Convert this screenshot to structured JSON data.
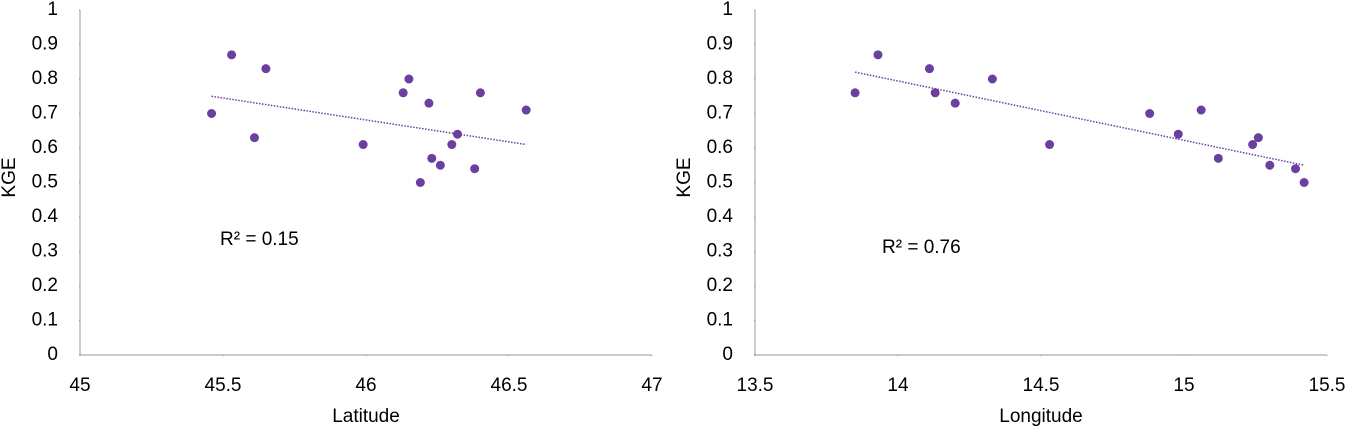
{
  "chart_data": [
    {
      "type": "scatter",
      "x_label": "Latitude",
      "y_label": "KGE",
      "annotation": "R² = 0.15",
      "color": "#6a3fa0",
      "x": [
        45.46,
        45.53,
        45.61,
        45.65,
        45.99,
        46.13,
        46.15,
        46.19,
        46.22,
        46.23,
        46.26,
        46.3,
        46.32,
        46.38,
        46.4,
        46.56
      ],
      "values": [
        0.7,
        0.87,
        0.63,
        0.83,
        0.61,
        0.76,
        0.8,
        0.5,
        0.73,
        0.57,
        0.55,
        0.61,
        0.64,
        0.54,
        0.76,
        0.71
      ],
      "trendline": {
        "x": [
          45.46,
          46.56
        ],
        "values": [
          0.75,
          0.61
        ]
      },
      "xlim": [
        45,
        47
      ],
      "xticks": [
        45,
        45.5,
        46,
        46.5,
        47
      ],
      "ylim": [
        0,
        1
      ],
      "yticks": [
        0,
        0.1,
        0.2,
        0.3,
        0.4,
        0.5,
        0.6,
        0.7,
        0.8,
        0.9,
        1
      ]
    },
    {
      "type": "scatter",
      "x_label": "Longitude",
      "y_label": "KGE",
      "annotation": "R² = 0.76",
      "color": "#6a3fa0",
      "x": [
        13.85,
        13.93,
        14.11,
        14.13,
        14.2,
        14.33,
        14.53,
        14.88,
        14.98,
        15.06,
        15.12,
        15.24,
        15.26,
        15.3,
        15.39,
        15.42
      ],
      "values": [
        0.76,
        0.87,
        0.83,
        0.76,
        0.73,
        0.8,
        0.61,
        0.7,
        0.64,
        0.71,
        0.57,
        0.61,
        0.63,
        0.55,
        0.54,
        0.5
      ],
      "trendline": {
        "x": [
          13.85,
          15.42
        ],
        "values": [
          0.82,
          0.55
        ]
      },
      "xlim": [
        13.5,
        15.5
      ],
      "xticks": [
        13.5,
        14,
        14.5,
        15,
        15.5
      ],
      "ylim": [
        0,
        1
      ],
      "yticks": [
        0,
        0.1,
        0.2,
        0.3,
        0.4,
        0.5,
        0.6,
        0.7,
        0.8,
        0.9,
        1
      ]
    }
  ]
}
